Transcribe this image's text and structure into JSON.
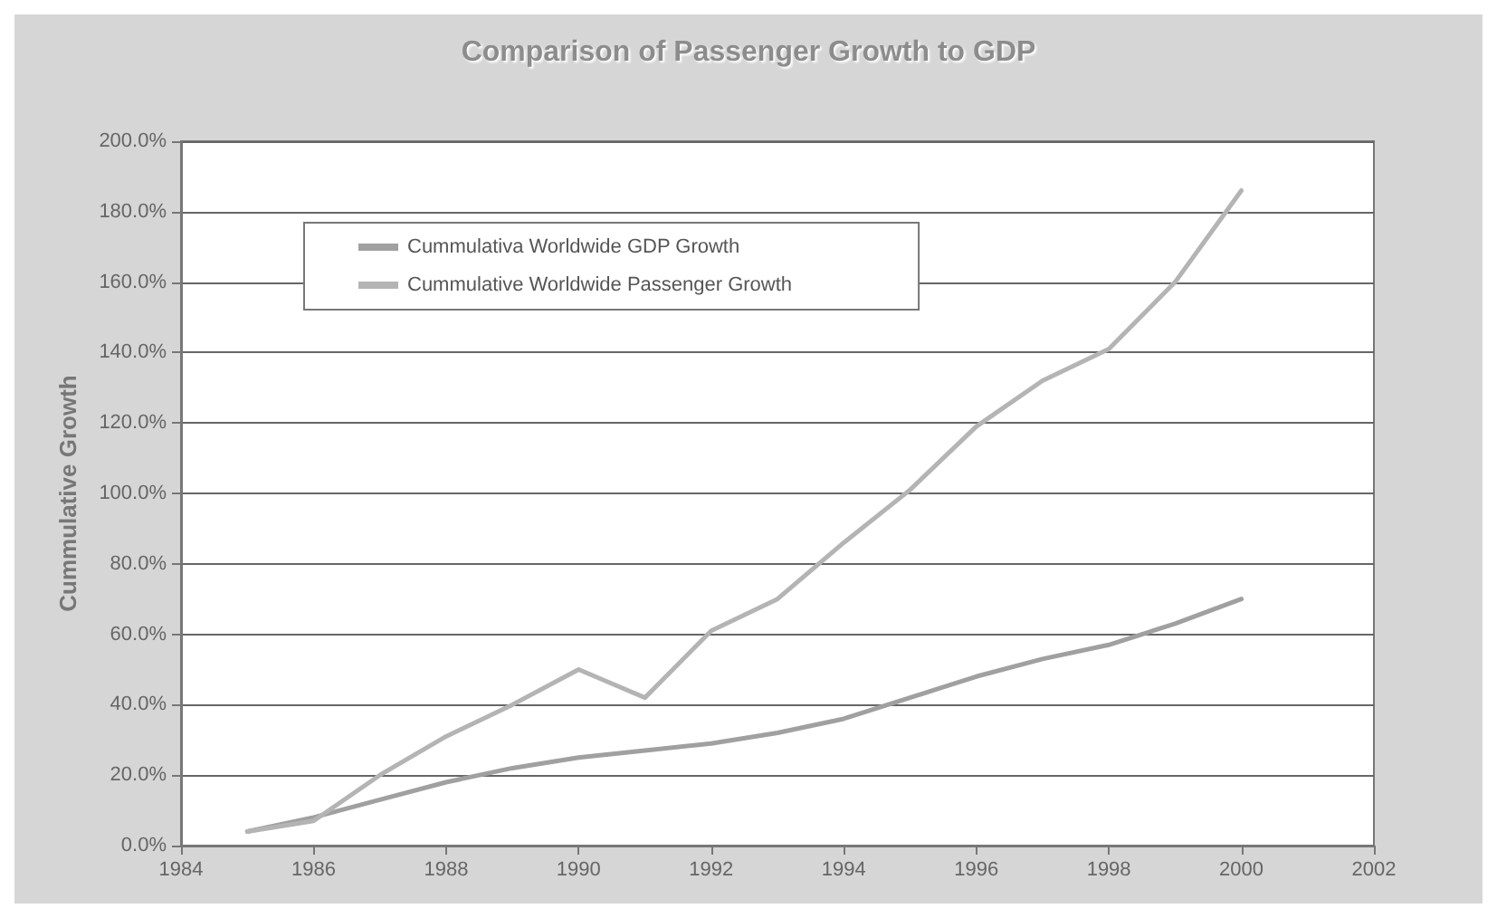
{
  "chart_data": {
    "type": "line",
    "title": "Comparison of Passenger Growth to GDP",
    "ylabel": "Cummulative Growth",
    "x": [
      1985,
      1986,
      1987,
      1988,
      1989,
      1990,
      1991,
      1992,
      1993,
      1994,
      1995,
      1996,
      1997,
      1998,
      1999,
      2000
    ],
    "series": [
      {
        "name": "Cummulativa Worldwide GDP Growth",
        "color": "#a0a0a0",
        "values": [
          4,
          8,
          13,
          18,
          22,
          25,
          27,
          29,
          32,
          36,
          42,
          48,
          53,
          57,
          63,
          70
        ]
      },
      {
        "name": "Cummulative Worldwide Passenger Growth",
        "color": "#b4b4b4",
        "values": [
          4,
          7,
          20,
          31,
          40,
          50,
          42,
          61,
          70,
          86,
          101,
          119,
          132,
          141,
          160,
          186
        ]
      }
    ],
    "xlim": [
      1984,
      2002
    ],
    "xticks": [
      1984,
      1986,
      1988,
      1990,
      1992,
      1994,
      1996,
      1998,
      2000,
      2002
    ],
    "ylim": [
      0,
      200
    ],
    "yticks": [
      {
        "value": 0,
        "label": "0.0%"
      },
      {
        "value": 20,
        "label": "20.0%"
      },
      {
        "value": 40,
        "label": "40.0%"
      },
      {
        "value": 60,
        "label": "60.0%"
      },
      {
        "value": 80,
        "label": "80.0%"
      },
      {
        "value": 100,
        "label": "100.0%"
      },
      {
        "value": 120,
        "label": "120.0%"
      },
      {
        "value": 140,
        "label": "140.0%"
      },
      {
        "value": 160,
        "label": "160.0%"
      },
      {
        "value": 180,
        "label": "180.0%"
      },
      {
        "value": 200,
        "label": "200.0%"
      }
    ],
    "grid": "y",
    "legend": "top left",
    "marker": "none",
    "line_style": "solid"
  }
}
